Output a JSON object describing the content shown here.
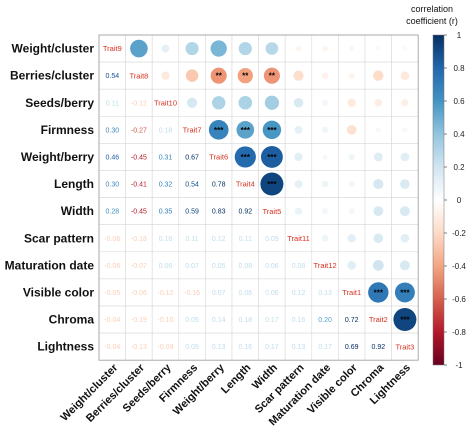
{
  "chart_data": {
    "type": "heatmap",
    "title": "",
    "legend_title_lines": [
      "correlation",
      "coefficient (r)"
    ],
    "variables": [
      "Weight/cluster",
      "Berries/cluster",
      "Seeds/berry",
      "Firmness",
      "Weight/berry",
      "Length",
      "Width",
      "Scar pattern",
      "Maturation date",
      "Visible color",
      "Chroma",
      "Lightness"
    ],
    "trait_labels": [
      "Trait9",
      "Trait8",
      "Trait10",
      "Trait7",
      "Trait6",
      "Trait4",
      "Trait5",
      "Trait11",
      "Trait12",
      "Trait1",
      "Trait2",
      "Trait3"
    ],
    "correlations": [
      [
        1,
        0.54,
        0.11,
        0.3,
        0.46,
        0.3,
        0.28,
        -0.06,
        -0.06,
        -0.05,
        -0.04,
        -0.04
      ],
      [
        0.54,
        1,
        -0.12,
        -0.27,
        -0.45,
        -0.41,
        -0.45,
        -0.18,
        -0.07,
        -0.06,
        -0.19,
        -0.13
      ],
      [
        0.11,
        -0.12,
        1,
        0.18,
        0.31,
        0.32,
        0.35,
        0.16,
        0.06,
        -0.12,
        -0.1,
        -0.09
      ],
      [
        0.3,
        -0.27,
        0.18,
        1,
        0.67,
        0.54,
        0.59,
        0.11,
        0.07,
        -0.16,
        0.05,
        0.05
      ],
      [
        0.46,
        -0.45,
        0.31,
        0.67,
        1,
        0.78,
        0.83,
        0.12,
        0.05,
        0.07,
        0.14,
        0.13
      ],
      [
        0.3,
        -0.41,
        0.32,
        0.54,
        0.78,
        1,
        0.92,
        0.11,
        0.08,
        0.06,
        0.18,
        0.16
      ],
      [
        0.28,
        -0.45,
        0.35,
        0.59,
        0.83,
        0.92,
        1,
        0.09,
        0.06,
        0.06,
        0.17,
        0.17
      ],
      [
        -0.06,
        -0.18,
        0.16,
        0.11,
        0.12,
        0.11,
        0.09,
        1,
        0.08,
        0.12,
        0.16,
        0.13
      ],
      [
        -0.06,
        -0.07,
        0.06,
        0.07,
        0.05,
        0.08,
        0.06,
        0.08,
        1,
        0.13,
        0.2,
        0.17
      ],
      [
        -0.05,
        -0.06,
        -0.12,
        -0.16,
        0.07,
        0.06,
        0.06,
        0.12,
        0.13,
        1,
        0.72,
        0.69
      ],
      [
        -0.04,
        -0.19,
        -0.1,
        0.05,
        0.14,
        0.18,
        0.17,
        0.16,
        0.2,
        0.72,
        1,
        0.92
      ],
      [
        -0.04,
        -0.13,
        -0.09,
        0.05,
        0.13,
        0.16,
        0.17,
        0.13,
        0.17,
        0.69,
        0.92,
        1
      ]
    ],
    "significance_upper": [
      {
        "row": 1,
        "col": 4,
        "label": "**"
      },
      {
        "row": 1,
        "col": 5,
        "label": "**"
      },
      {
        "row": 1,
        "col": 6,
        "label": "**"
      },
      {
        "row": 3,
        "col": 4,
        "label": "***"
      },
      {
        "row": 3,
        "col": 5,
        "label": "***"
      },
      {
        "row": 3,
        "col": 6,
        "label": "***"
      },
      {
        "row": 4,
        "col": 5,
        "label": "***"
      },
      {
        "row": 4,
        "col": 6,
        "label": "***"
      },
      {
        "row": 5,
        "col": 6,
        "label": "***"
      },
      {
        "row": 9,
        "col": 10,
        "label": "***"
      },
      {
        "row": 9,
        "col": 11,
        "label": "***"
      },
      {
        "row": 10,
        "col": 11,
        "label": "***"
      }
    ],
    "color_scale": {
      "min": -1,
      "max": 1,
      "negative": "#67001f",
      "zero": "#ffffff",
      "positive": "#053061"
    },
    "legend_ticks": [
      "1",
      "0.8",
      "0.6",
      "0.4",
      "0.2",
      "0",
      "-0.2",
      "-0.4",
      "-0.6",
      "-0.8",
      "-1"
    ],
    "legend_placement": "right"
  }
}
